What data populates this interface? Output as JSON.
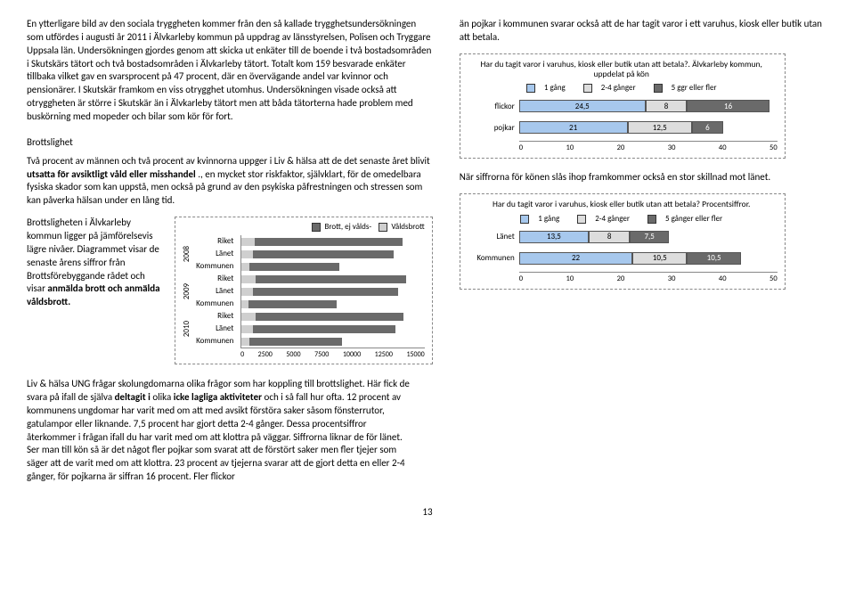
{
  "colors": {
    "seg1": "#a7c8ed",
    "seg2": "#dddddd",
    "seg3": "#6a6a6a",
    "crimeBar": "#6a6a6a",
    "crimeBarV": "#cfcfcf",
    "border": "#888888"
  },
  "left": {
    "p1a": "En ytterligare bild av den sociala tryggheten kommer från den så kallade trygghetsundersökningen som utfördes i augusti år 2011 i Älvkarleby kommun på uppdrag av länsstyrelsen, Polisen och Tryggare Uppsala län. Undersökningen gjordes genom att skicka ut enkäter till de boende i två bostadsområden i Skutskärs tätort och två bostadsområden i Älvkarleby tätort. Totalt kom 159 besvarade enkäter tillbaka vilket gav en svarsprocent på 47 procent, där en övervägande andel var kvinnor och pensionärer. I Skutskär framkom en viss otrygghet utomhus. Undersökningen visade också att otryggheten är större i Skutskär än i Älvkarleby tätort men att båda tätorterna hade problem med buskörning med mopeder och bilar som kör för fort.",
    "sectionTitle": "Brottslighet",
    "p2a": "Två procent av männen och två procent av kvinnorna uppger i Liv & hälsa att de det senaste året blivit ",
    "p2b": "utsatta för avsiktligt våld eller misshandel",
    "p2c": "., en mycket stor riskfaktor, självklart, för de omedelbara fysiska skador som kan uppstå, men också på grund av den psykiska påfrestningen och stressen som kan påverka hälsan under en lång tid.",
    "crimeText1": "Brottsligheten i Älvkarleby kommun ligger på jämförelsevis lägre nivåer. Diagrammet visar de senaste årens siffror från Brottsförebyggande rådet och visar ",
    "crimeText2": "anmälda brott och anmälda våldsbrott."
  },
  "crimeChart": {
    "legend1": "Brott, ej vålds-",
    "legend2": "Våldsbrott",
    "years": [
      "2008",
      "2009",
      "2010"
    ],
    "rowLabels": [
      "Riket",
      "Länet",
      "Kommunen",
      "Riket",
      "Länet",
      "Kommunen",
      "Riket",
      "Länet",
      "Kommunen"
    ],
    "rows": [
      {
        "main": 13200,
        "v": 1100
      },
      {
        "main": 12500,
        "v": 900
      },
      {
        "main": 8000,
        "v": 600
      },
      {
        "main": 13500,
        "v": 1150
      },
      {
        "main": 12800,
        "v": 950
      },
      {
        "main": 7800,
        "v": 580
      },
      {
        "main": 13300,
        "v": 1120
      },
      {
        "main": 12600,
        "v": 920
      },
      {
        "main": 8200,
        "v": 620
      }
    ],
    "xmax": 15000,
    "ticks": [
      "0",
      "2500",
      "5000",
      "7500",
      "10000",
      "12500",
      "15000"
    ]
  },
  "right": {
    "p1": "än pojkar i kommunen svarar också att de har tagit varor i ett varuhus, kiosk eller butik utan att betala.",
    "chart1": {
      "title": "Har du tagit varor i varuhus, kiosk eller butik utan att betala?. Älvkarleby kommun, uppdelat på kön",
      "legend": [
        "1 gång",
        "2-4 gånger",
        "5 ggr eller fler"
      ],
      "rows": [
        {
          "label": "flickor",
          "vals": [
            24.5,
            8,
            16
          ]
        },
        {
          "label": "pojkar",
          "vals": [
            21,
            12.5,
            6
          ]
        }
      ],
      "xmax": 50,
      "ticks": [
        "0",
        "10",
        "20",
        "30",
        "40",
        "50"
      ]
    },
    "p2": "När siffrorna för könen slås ihop framkommer också en stor skillnad mot länet.",
    "chart2": {
      "title": "Har du tagit varor i varuhus, kiosk eller butik utan att betala? Procentsiffror.",
      "legend": [
        "1 gång",
        "2-4 gånger",
        "5 gånger eller fler"
      ],
      "rows": [
        {
          "label": "Länet",
          "vals": [
            13.5,
            8.0,
            7.5
          ]
        },
        {
          "label": "Kommunen",
          "vals": [
            22.0,
            10.5,
            10.5
          ]
        }
      ],
      "xmax": 50,
      "ticks": [
        "0",
        "10",
        "20",
        "30",
        "40",
        "50"
      ]
    }
  },
  "bottom": {
    "t1": "Liv & hälsa UNG frågar skolungdomarna olika frågor som har koppling till brottslighet. Här fick de svara på ifall de själva ",
    "t2": "deltagit i",
    "t3": " olika ",
    "t4": "icke lagliga aktiviteter",
    "t5": " och i så fall hur ofta. 12 procent av kommunens ungdomar har varit med om att med avsikt förstöra saker såsom fönsterrutor, gatulampor eller liknande. 7,5 procent har gjort detta 2-4 gånger. Dessa procentsiffror återkommer i frågan ifall du har varit med om att klottra på väggar. Siffrorna liknar de för länet. Ser man till kön så är det något fler pojkar som svarat att de förstört saker men fler tjejer som säger att de varit med om att klottra. 23 procent av tjejerna svarar att de gjort detta en eller 2-4 gånger, för pojkarna är siffran 16 procent. Fler flickor"
  },
  "pageNum": "13"
}
